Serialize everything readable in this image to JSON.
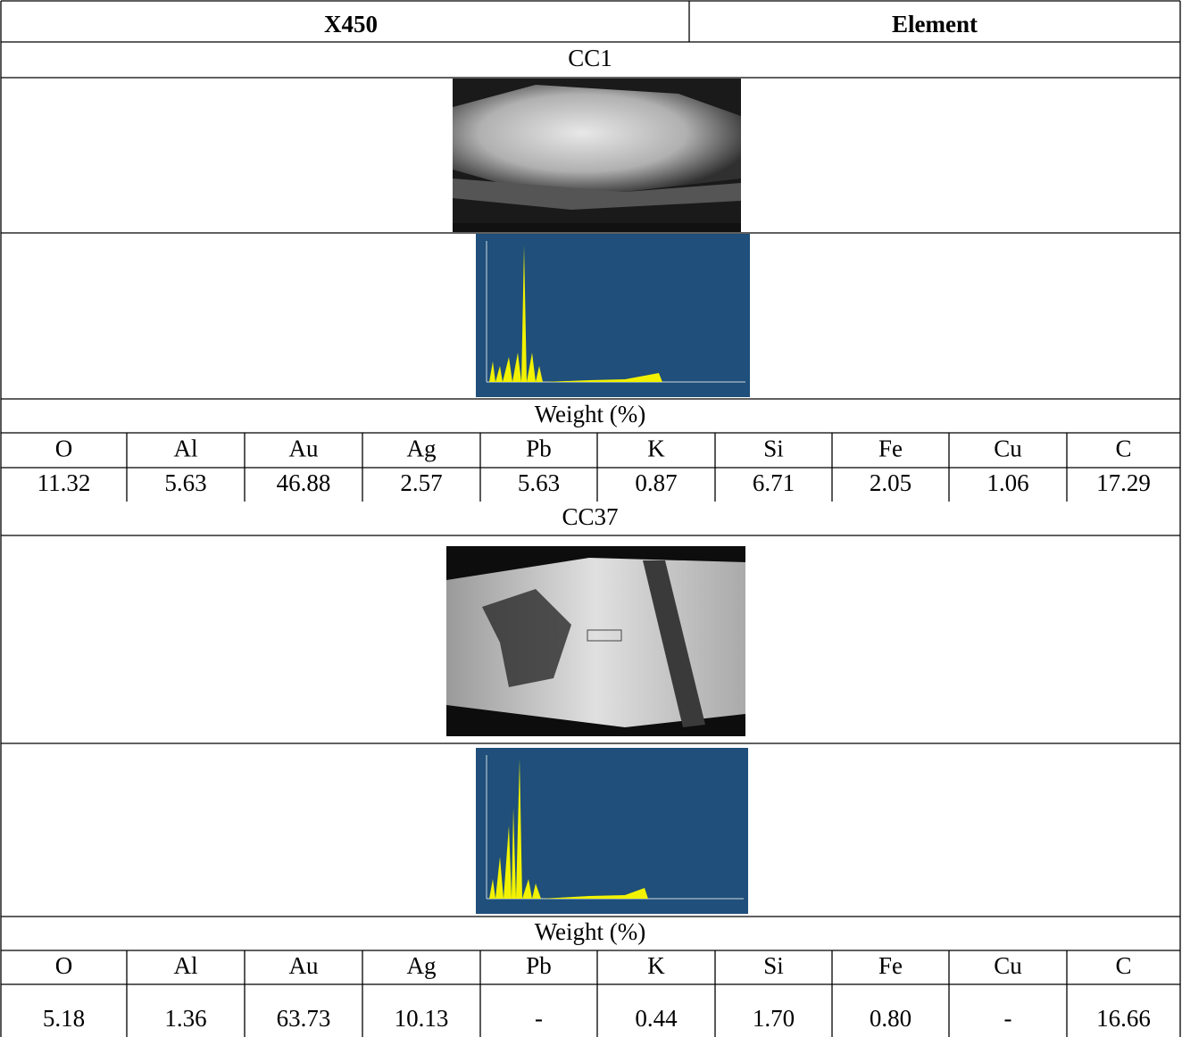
{
  "header": {
    "left": "X450",
    "right": "Element"
  },
  "samples": [
    {
      "name": "CC1",
      "weight_label": "Weight (%)",
      "elements": [
        "O",
        "Al",
        "Au",
        "Ag",
        "Pb",
        "K",
        "Si",
        "Fe",
        "Cu",
        "C"
      ],
      "values": [
        "11.32",
        "5.63",
        "46.88",
        "2.57",
        "5.63",
        "0.87",
        "6.71",
        "2.05",
        "1.06",
        "17.29"
      ]
    },
    {
      "name": "CC37",
      "weight_label": "Weight (%)",
      "elements": [
        "O",
        "Al",
        "Au",
        "Ag",
        "Pb",
        "K",
        "Si",
        "Fe",
        "Cu",
        "C"
      ],
      "values": [
        "5.18",
        "1.36",
        "63.73",
        "10.13",
        "-",
        "0.44",
        "1.70",
        "0.80",
        "-",
        "16.66"
      ]
    }
  ]
}
